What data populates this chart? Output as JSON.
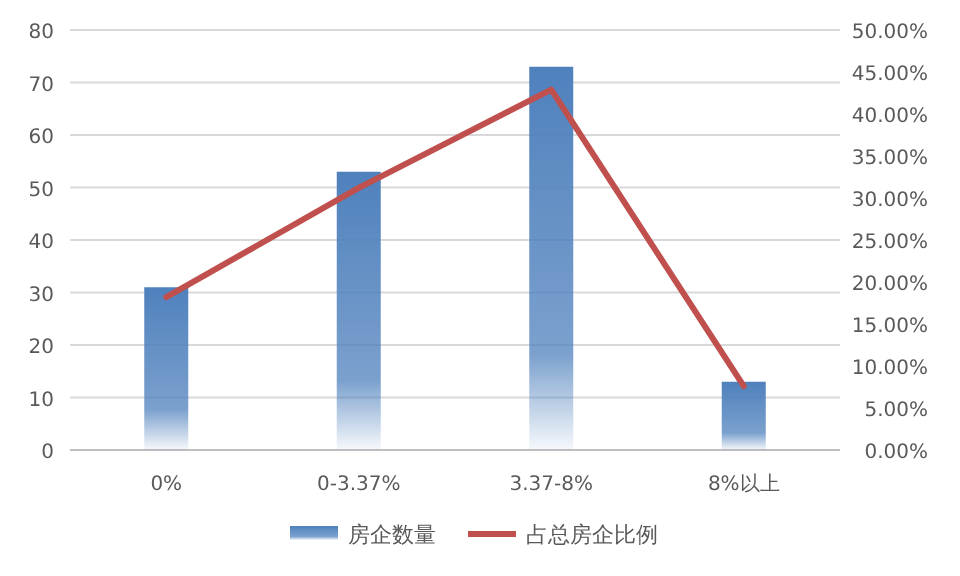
{
  "chart_data": {
    "type": "bar",
    "categories": [
      "0%",
      "0-3.37%",
      "3.37-8%",
      "8%以上"
    ],
    "series": [
      {
        "name": "房企数量",
        "color": "#4f81bd",
        "values": [
          31,
          53,
          73,
          13
        ]
      },
      {
        "name": "占总房企比例",
        "type": "line",
        "axis": "y2",
        "color": "#c0504d",
        "values": [
          18.2,
          31.2,
          42.9,
          7.6
        ]
      }
    ],
    "ylim": [
      0,
      80
    ],
    "yticks": [
      0,
      10,
      20,
      30,
      40,
      50,
      60,
      70,
      80
    ],
    "y2lim": [
      0,
      50
    ],
    "y2ticks": [
      {
        "value": 0,
        "label": "0.00%"
      },
      {
        "value": 5,
        "label": "5.00%"
      },
      {
        "value": 10,
        "label": "10.00%"
      },
      {
        "value": 15,
        "label": "15.00%"
      },
      {
        "value": 20,
        "label": "20.00%"
      },
      {
        "value": 25,
        "label": "25.00%"
      },
      {
        "value": 30,
        "label": "30.00%"
      },
      {
        "value": 35,
        "label": "35.00%"
      },
      {
        "value": 40,
        "label": "40.00%"
      },
      {
        "value": 45,
        "label": "45.00%"
      },
      {
        "value": 50,
        "label": "50.00%"
      }
    ],
    "grid": "y",
    "legend": "bottom",
    "marker": "none"
  }
}
